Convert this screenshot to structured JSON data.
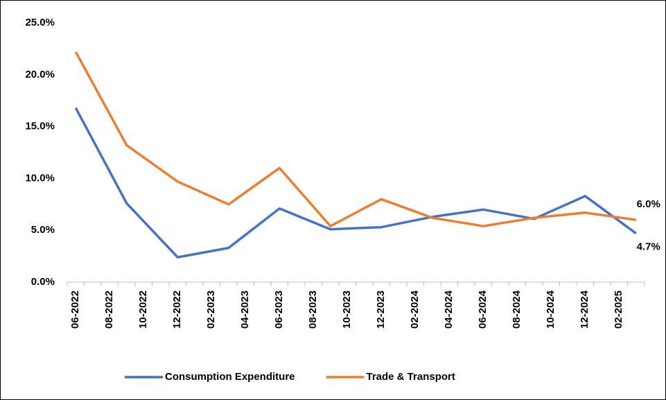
{
  "chart_data": {
    "type": "line",
    "categories": [
      "06-2022",
      null,
      "08-2022",
      null,
      "10-2022",
      null,
      "12-2022",
      null,
      "02-2023",
      null,
      "04-2023",
      null,
      "06-2023",
      null,
      "08-2023",
      null,
      "10-2023",
      null,
      "12-2023",
      null,
      "02-2024",
      null,
      "04-2024",
      null,
      "06-2024",
      null,
      "08-2024",
      null,
      "10-2024",
      null,
      "12-2024",
      null,
      "02-2025",
      null
    ],
    "series": [
      {
        "name": "Consumption Expenditure",
        "color": "#4472c4",
        "values": [
          16.8,
          null,
          null,
          7.6,
          null,
          null,
          2.4,
          null,
          null,
          3.3,
          null,
          null,
          7.1,
          null,
          null,
          5.1,
          null,
          null,
          5.3,
          null,
          null,
          6.3,
          null,
          null,
          7.0,
          null,
          null,
          6.1,
          null,
          null,
          8.3,
          null,
          null,
          4.7
        ],
        "value_labels": [
          null,
          null,
          null,
          null,
          null,
          null,
          null,
          null,
          null,
          null,
          null,
          null,
          null,
          null,
          null,
          null,
          null,
          null,
          null,
          null,
          null,
          null,
          null,
          null,
          null,
          null,
          null,
          null,
          null,
          null,
          null,
          null,
          null,
          "4.7%"
        ]
      },
      {
        "name": "Trade & Transport",
        "color": "#ed7d31",
        "values": [
          22.2,
          null,
          null,
          13.2,
          null,
          null,
          9.7,
          null,
          null,
          7.5,
          null,
          null,
          11.0,
          null,
          null,
          5.4,
          null,
          null,
          8.0,
          null,
          null,
          6.2,
          null,
          null,
          5.4,
          null,
          null,
          6.2,
          null,
          null,
          6.7,
          null,
          null,
          6.0
        ],
        "value_labels": [
          null,
          null,
          null,
          null,
          null,
          null,
          null,
          null,
          null,
          null,
          null,
          null,
          null,
          null,
          null,
          null,
          null,
          null,
          null,
          null,
          null,
          null,
          null,
          null,
          null,
          null,
          null,
          null,
          null,
          null,
          null,
          null,
          null,
          "6.0%"
        ]
      }
    ],
    "span_gaps": true,
    "ylim": [
      0,
      25
    ],
    "yticks": [
      {
        "value": 0,
        "label": "0.0%"
      },
      {
        "value": 5,
        "label": "5.0%"
      },
      {
        "value": 10,
        "label": "10.0%"
      },
      {
        "value": 15,
        "label": "15.0%"
      },
      {
        "value": 20,
        "label": "20.0%"
      },
      {
        "value": 25,
        "label": "25.0%"
      }
    ],
    "grid": false,
    "legend": "bottom"
  }
}
